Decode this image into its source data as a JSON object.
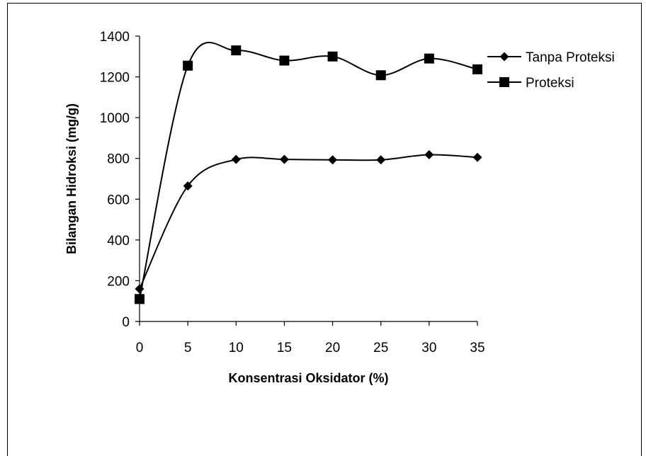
{
  "chart_data": {
    "type": "line",
    "xlabel": "Konsentrasi Oksidator (%)",
    "ylabel": "Bilangan Hidroksi (mg/g)",
    "x": [
      0,
      5,
      10,
      15,
      20,
      25,
      30,
      35
    ],
    "xticks": [
      "0",
      "5",
      "10",
      "15",
      "20",
      "25",
      "30",
      "35"
    ],
    "yticks": [
      "0",
      "200",
      "400",
      "600",
      "800",
      "1000",
      "1200",
      "1400"
    ],
    "xlim": [
      0,
      35
    ],
    "ylim": [
      0,
      1400
    ],
    "grid": false,
    "legend_position": "right",
    "smooth": true,
    "series": [
      {
        "name": "Tanpa Proteksi",
        "marker": "diamond",
        "color": "#000000",
        "values": [
          160,
          665,
          795,
          795,
          793,
          793,
          818,
          805
        ]
      },
      {
        "name": "Proteksi",
        "marker": "square",
        "color": "#000000",
        "values": [
          110,
          1255,
          1330,
          1280,
          1300,
          1208,
          1290,
          1237
        ]
      }
    ]
  }
}
